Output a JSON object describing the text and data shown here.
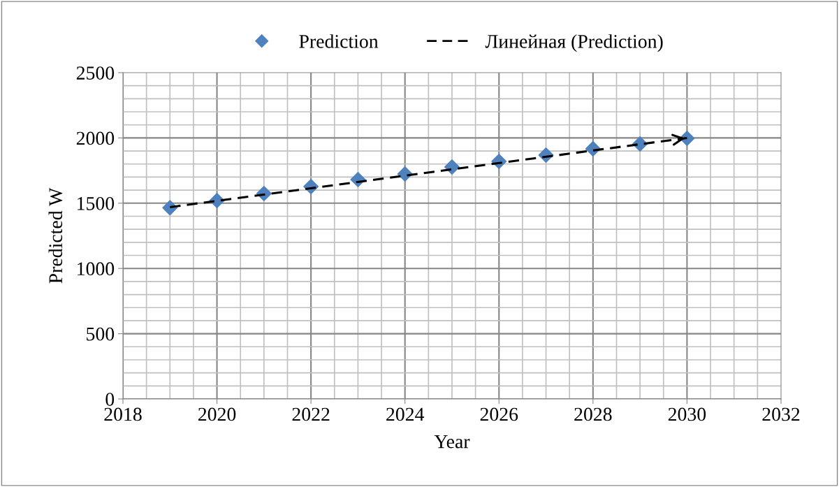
{
  "chart_data": {
    "type": "scatter",
    "xlabel": "Year",
    "ylabel": "Predicted W",
    "x": [
      2019,
      2020,
      2021,
      2022,
      2023,
      2024,
      2025,
      2026,
      2027,
      2028,
      2029,
      2030
    ],
    "series": [
      {
        "name": "Prediction",
        "color": "#4f81bd",
        "marker": "diamond",
        "values": [
          1465,
          1520,
          1574,
          1627,
          1681,
          1724,
          1777,
          1820,
          1868,
          1917,
          1954,
          1997
        ]
      },
      {
        "name": "Линейная (Prediction)",
        "type": "line",
        "color": "#000000",
        "line_style": "dashed",
        "marker": "none",
        "x": [
          2019,
          2030
        ],
        "values": [
          1470,
          2000
        ]
      }
    ],
    "xlim": [
      2018,
      2032
    ],
    "xticks": [
      2018,
      2020,
      2022,
      2024,
      2026,
      2028,
      2030,
      2032
    ],
    "ylim": [
      0,
      2500
    ],
    "yticks": [
      0,
      500,
      1000,
      1500,
      2000,
      2500
    ],
    "grid": true,
    "legend": "top"
  }
}
